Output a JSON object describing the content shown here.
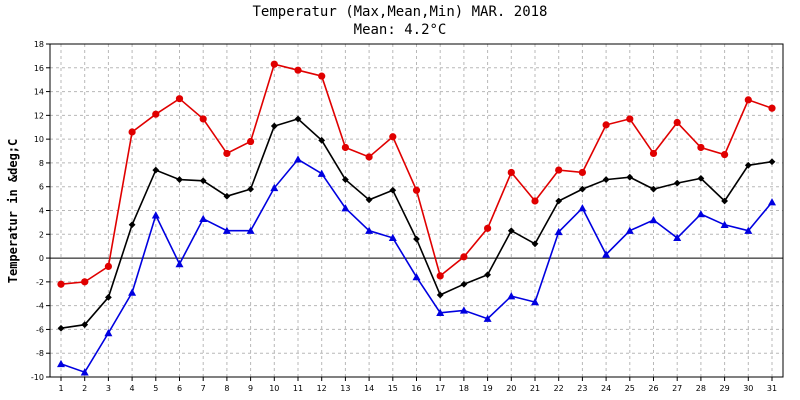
{
  "chart_data": {
    "type": "line",
    "title": "Temperatur (Max,Mean,Min) MAR. 2018",
    "subtitle": "Mean: 4.2°C",
    "ylabel": "Temperatur in &deg;C",
    "xlabel": "",
    "ylim": [
      -10,
      18
    ],
    "y_ticks": [
      -10,
      -8,
      -6,
      -4,
      -2,
      0,
      2,
      4,
      6,
      8,
      10,
      12,
      14,
      16,
      18
    ],
    "x": [
      1,
      2,
      3,
      4,
      5,
      6,
      7,
      8,
      9,
      10,
      11,
      12,
      13,
      14,
      15,
      16,
      17,
      18,
      19,
      20,
      21,
      22,
      23,
      24,
      25,
      26,
      27,
      28,
      29,
      30,
      31
    ],
    "grid": true,
    "series": [
      {
        "key": "max",
        "color": "#e00000",
        "marker": "circle",
        "values": [
          -2.2,
          -2.0,
          -0.7,
          10.6,
          12.1,
          13.4,
          11.7,
          8.8,
          9.8,
          16.3,
          15.8,
          15.3,
          9.3,
          8.5,
          10.2,
          5.7,
          -1.5,
          0.1,
          2.5,
          7.2,
          4.8,
          7.4,
          7.2,
          11.2,
          11.7,
          8.8,
          11.4,
          9.3,
          8.7,
          13.3,
          12.6
        ]
      },
      {
        "key": "mean",
        "color": "#000000",
        "marker": "diamond",
        "values": [
          -5.9,
          -5.6,
          -3.3,
          2.8,
          7.4,
          6.6,
          6.5,
          5.2,
          5.8,
          11.1,
          11.7,
          9.9,
          6.6,
          4.9,
          5.7,
          1.6,
          -3.1,
          -2.2,
          -1.4,
          2.3,
          1.2,
          4.8,
          5.8,
          6.6,
          6.8,
          5.8,
          6.3,
          6.7,
          4.8,
          7.8,
          8.1
        ]
      },
      {
        "key": "min",
        "color": "#0000e0",
        "marker": "triangle",
        "values": [
          -8.9,
          -9.6,
          -6.3,
          -2.9,
          3.6,
          -0.5,
          3.3,
          2.3,
          2.3,
          5.9,
          8.3,
          7.1,
          4.2,
          2.3,
          1.7,
          -1.6,
          -4.6,
          -4.4,
          -5.1,
          -3.2,
          -3.7,
          2.2,
          4.2,
          0.3,
          2.3,
          3.2,
          1.7,
          3.7,
          2.8,
          2.3,
          4.7
        ]
      }
    ]
  }
}
